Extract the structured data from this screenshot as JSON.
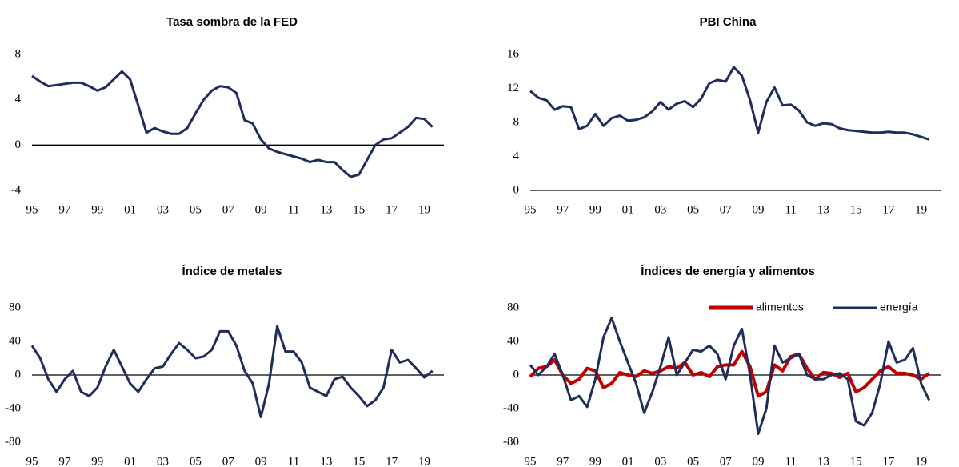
{
  "chart_data": [
    {
      "type": "line",
      "title": "Tasa sombra de la FED",
      "x": [
        1995,
        1995.5,
        1996,
        1996.5,
        1997,
        1997.5,
        1998,
        1998.5,
        1999,
        1999.5,
        2000,
        2000.5,
        2001,
        2001.5,
        2002,
        2002.5,
        2003,
        2003.5,
        2004,
        2004.5,
        2005,
        2005.5,
        2006,
        2006.5,
        2007,
        2007.5,
        2008,
        2008.5,
        2009,
        2009.5,
        2010,
        2010.5,
        2011,
        2011.5,
        2012,
        2012.5,
        2013,
        2013.5,
        2014,
        2014.5,
        2015,
        2015.5,
        2016,
        2016.5,
        2017,
        2017.5,
        2018,
        2018.5,
        2019,
        2019.5
      ],
      "series": [
        {
          "color": "#1f2d5c",
          "values": [
            6.1,
            5.6,
            5.2,
            5.3,
            5.4,
            5.5,
            5.5,
            5.2,
            4.8,
            5.1,
            5.8,
            6.5,
            5.8,
            3.5,
            1.1,
            1.5,
            1.2,
            1.0,
            1.0,
            1.5,
            2.8,
            4.0,
            4.8,
            5.2,
            5.1,
            4.6,
            2.2,
            1.9,
            0.5,
            -0.3,
            -0.6,
            -0.8,
            -1.0,
            -1.2,
            -1.5,
            -1.3,
            -1.5,
            -1.5,
            -2.2,
            -2.8,
            -2.6,
            -1.3,
            0.0,
            0.5,
            0.6,
            1.1,
            1.6,
            2.4,
            2.3,
            1.6
          ]
        }
      ],
      "xlim": [
        1995,
        2020.2
      ],
      "xticks": [
        {
          "value": 1995,
          "label": "95"
        },
        {
          "value": 1997,
          "label": "97"
        },
        {
          "value": 1999,
          "label": "99"
        },
        {
          "value": 2001,
          "label": "01"
        },
        {
          "value": 2003,
          "label": "03"
        },
        {
          "value": 2005,
          "label": "05"
        },
        {
          "value": 2007,
          "label": "07"
        },
        {
          "value": 2009,
          "label": "09"
        },
        {
          "value": 2011,
          "label": "11"
        },
        {
          "value": 2013,
          "label": "13"
        },
        {
          "value": 2015,
          "label": "15"
        },
        {
          "value": 2017,
          "label": "17"
        },
        {
          "value": 2019,
          "label": "19"
        }
      ],
      "ylim": [
        -4,
        8
      ],
      "yticks": [
        -4,
        0,
        4,
        8
      ]
    },
    {
      "type": "line",
      "title": "PBI China",
      "x": [
        1995,
        1995.5,
        1996,
        1996.5,
        1997,
        1997.5,
        1998,
        1998.5,
        1999,
        1999.5,
        2000,
        2000.5,
        2001,
        2001.5,
        2002,
        2002.5,
        2003,
        2003.5,
        2004,
        2004.5,
        2005,
        2005.5,
        2006,
        2006.5,
        2007,
        2007.5,
        2008,
        2008.5,
        2009,
        2009.5,
        2010,
        2010.5,
        2011,
        2011.5,
        2012,
        2012.5,
        2013,
        2013.5,
        2014,
        2014.5,
        2015,
        2015.5,
        2016,
        2016.5,
        2017,
        2017.5,
        2018,
        2018.5,
        2019,
        2019.5
      ],
      "series": [
        {
          "color": "#1f2d5c",
          "values": [
            11.7,
            10.9,
            10.6,
            9.5,
            9.9,
            9.8,
            7.2,
            7.6,
            9.0,
            7.6,
            8.5,
            8.8,
            8.2,
            8.3,
            8.6,
            9.3,
            10.4,
            9.5,
            10.2,
            10.5,
            9.8,
            10.8,
            12.6,
            13.0,
            12.8,
            14.5,
            13.5,
            10.6,
            6.8,
            10.4,
            12.1,
            10.0,
            10.1,
            9.4,
            8.0,
            7.6,
            7.9,
            7.8,
            7.3,
            7.1,
            7.0,
            6.9,
            6.8,
            6.8,
            6.9,
            6.8,
            6.8,
            6.6,
            6.3,
            6.0
          ]
        }
      ],
      "xlim": [
        1995,
        2020.2
      ],
      "xticks": [
        {
          "value": 1995,
          "label": "95"
        },
        {
          "value": 1997,
          "label": "97"
        },
        {
          "value": 1999,
          "label": "99"
        },
        {
          "value": 2001,
          "label": "01"
        },
        {
          "value": 2003,
          "label": "03"
        },
        {
          "value": 2005,
          "label": "05"
        },
        {
          "value": 2007,
          "label": "07"
        },
        {
          "value": 2009,
          "label": "09"
        },
        {
          "value": 2011,
          "label": "11"
        },
        {
          "value": 2013,
          "label": "13"
        },
        {
          "value": 2015,
          "label": "15"
        },
        {
          "value": 2017,
          "label": "17"
        },
        {
          "value": 2019,
          "label": "19"
        }
      ],
      "ylim": [
        0,
        16
      ],
      "yticks": [
        0,
        4,
        8,
        12,
        16
      ]
    },
    {
      "type": "line",
      "title": "Índice de metales",
      "x": [
        1995,
        1995.5,
        1996,
        1996.5,
        1997,
        1997.5,
        1998,
        1998.5,
        1999,
        1999.5,
        2000,
        2000.5,
        2001,
        2001.5,
        2002,
        2002.5,
        2003,
        2003.5,
        2004,
        2004.5,
        2005,
        2005.5,
        2006,
        2006.5,
        2007,
        2007.5,
        2008,
        2008.5,
        2009,
        2009.5,
        2010,
        2010.5,
        2011,
        2011.5,
        2012,
        2012.5,
        2013,
        2013.5,
        2014,
        2014.5,
        2015,
        2015.5,
        2016,
        2016.5,
        2017,
        2017.5,
        2018,
        2018.5,
        2019,
        2019.5
      ],
      "series": [
        {
          "color": "#1f2d5c",
          "values": [
            35,
            20,
            -5,
            -20,
            -5,
            5,
            -20,
            -25,
            -15,
            10,
            30,
            10,
            -10,
            -20,
            -5,
            8,
            10,
            25,
            38,
            30,
            20,
            22,
            30,
            52,
            52,
            35,
            5,
            -10,
            -50,
            -10,
            58,
            28,
            28,
            15,
            -15,
            -20,
            -25,
            -5,
            -2,
            -15,
            -25,
            -37,
            -30,
            -15,
            30,
            15,
            18,
            8,
            -3,
            5
          ]
        }
      ],
      "xlim": [
        1995,
        2020.2
      ],
      "xticks": [
        {
          "value": 1995,
          "label": "95"
        },
        {
          "value": 1997,
          "label": "97"
        },
        {
          "value": 1999,
          "label": "99"
        },
        {
          "value": 2001,
          "label": "01"
        },
        {
          "value": 2003,
          "label": "03"
        },
        {
          "value": 2005,
          "label": "05"
        },
        {
          "value": 2007,
          "label": "07"
        },
        {
          "value": 2009,
          "label": "09"
        },
        {
          "value": 2011,
          "label": "11"
        },
        {
          "value": 2013,
          "label": "13"
        },
        {
          "value": 2015,
          "label": "15"
        },
        {
          "value": 2017,
          "label": "17"
        },
        {
          "value": 2019,
          "label": "19"
        }
      ],
      "ylim": [
        -80,
        80
      ],
      "yticks": [
        -80,
        -40,
        0,
        40,
        80
      ]
    },
    {
      "type": "line",
      "title": "Índices de energía y alimentos",
      "x": [
        1995,
        1995.5,
        1996,
        1996.5,
        1997,
        1997.5,
        1998,
        1998.5,
        1999,
        1999.5,
        2000,
        2000.5,
        2001,
        2001.5,
        2002,
        2002.5,
        2003,
        2003.5,
        2004,
        2004.5,
        2005,
        2005.5,
        2006,
        2006.5,
        2007,
        2007.5,
        2008,
        2008.5,
        2009,
        2009.5,
        2010,
        2010.5,
        2011,
        2011.5,
        2012,
        2012.5,
        2013,
        2013.5,
        2014,
        2014.5,
        2015,
        2015.5,
        2016,
        2016.5,
        2017,
        2017.5,
        2018,
        2018.5,
        2019,
        2019.5
      ],
      "series": [
        {
          "name": "alimentos",
          "color": "#c00000",
          "values": [
            -2,
            8,
            10,
            18,
            0,
            -10,
            -5,
            8,
            5,
            -15,
            -10,
            3,
            0,
            -2,
            5,
            2,
            5,
            10,
            8,
            15,
            0,
            3,
            -2,
            10,
            12,
            12,
            28,
            10,
            -25,
            -20,
            12,
            5,
            22,
            25,
            8,
            -5,
            3,
            2,
            -3,
            2,
            -20,
            -15,
            -5,
            5,
            10,
            2,
            2,
            0,
            -5,
            2
          ]
        },
        {
          "name": "energía",
          "color": "#1f2d5c",
          "values": [
            12,
            0,
            10,
            25,
            0,
            -30,
            -25,
            -38,
            -5,
            45,
            68,
            40,
            15,
            -10,
            -45,
            -20,
            10,
            45,
            0,
            15,
            30,
            28,
            35,
            25,
            -5,
            35,
            55,
            0,
            -70,
            -40,
            35,
            15,
            20,
            25,
            0,
            -5,
            -5,
            0,
            2,
            -5,
            -55,
            -60,
            -45,
            -10,
            40,
            15,
            18,
            32,
            -10,
            -30
          ]
        }
      ],
      "xlim": [
        1995,
        2020.2
      ],
      "xticks": [
        {
          "value": 1995,
          "label": "95"
        },
        {
          "value": 1997,
          "label": "97"
        },
        {
          "value": 1999,
          "label": "99"
        },
        {
          "value": 2001,
          "label": "01"
        },
        {
          "value": 2003,
          "label": "03"
        },
        {
          "value": 2005,
          "label": "05"
        },
        {
          "value": 2007,
          "label": "07"
        },
        {
          "value": 2009,
          "label": "09"
        },
        {
          "value": 2011,
          "label": "11"
        },
        {
          "value": 2013,
          "label": "13"
        },
        {
          "value": 2015,
          "label": "15"
        },
        {
          "value": 2017,
          "label": "17"
        },
        {
          "value": 2019,
          "label": "19"
        }
      ],
      "ylim": [
        -80,
        80
      ],
      "yticks": [
        -80,
        -40,
        0,
        40,
        80
      ],
      "legend": "upper right"
    }
  ]
}
